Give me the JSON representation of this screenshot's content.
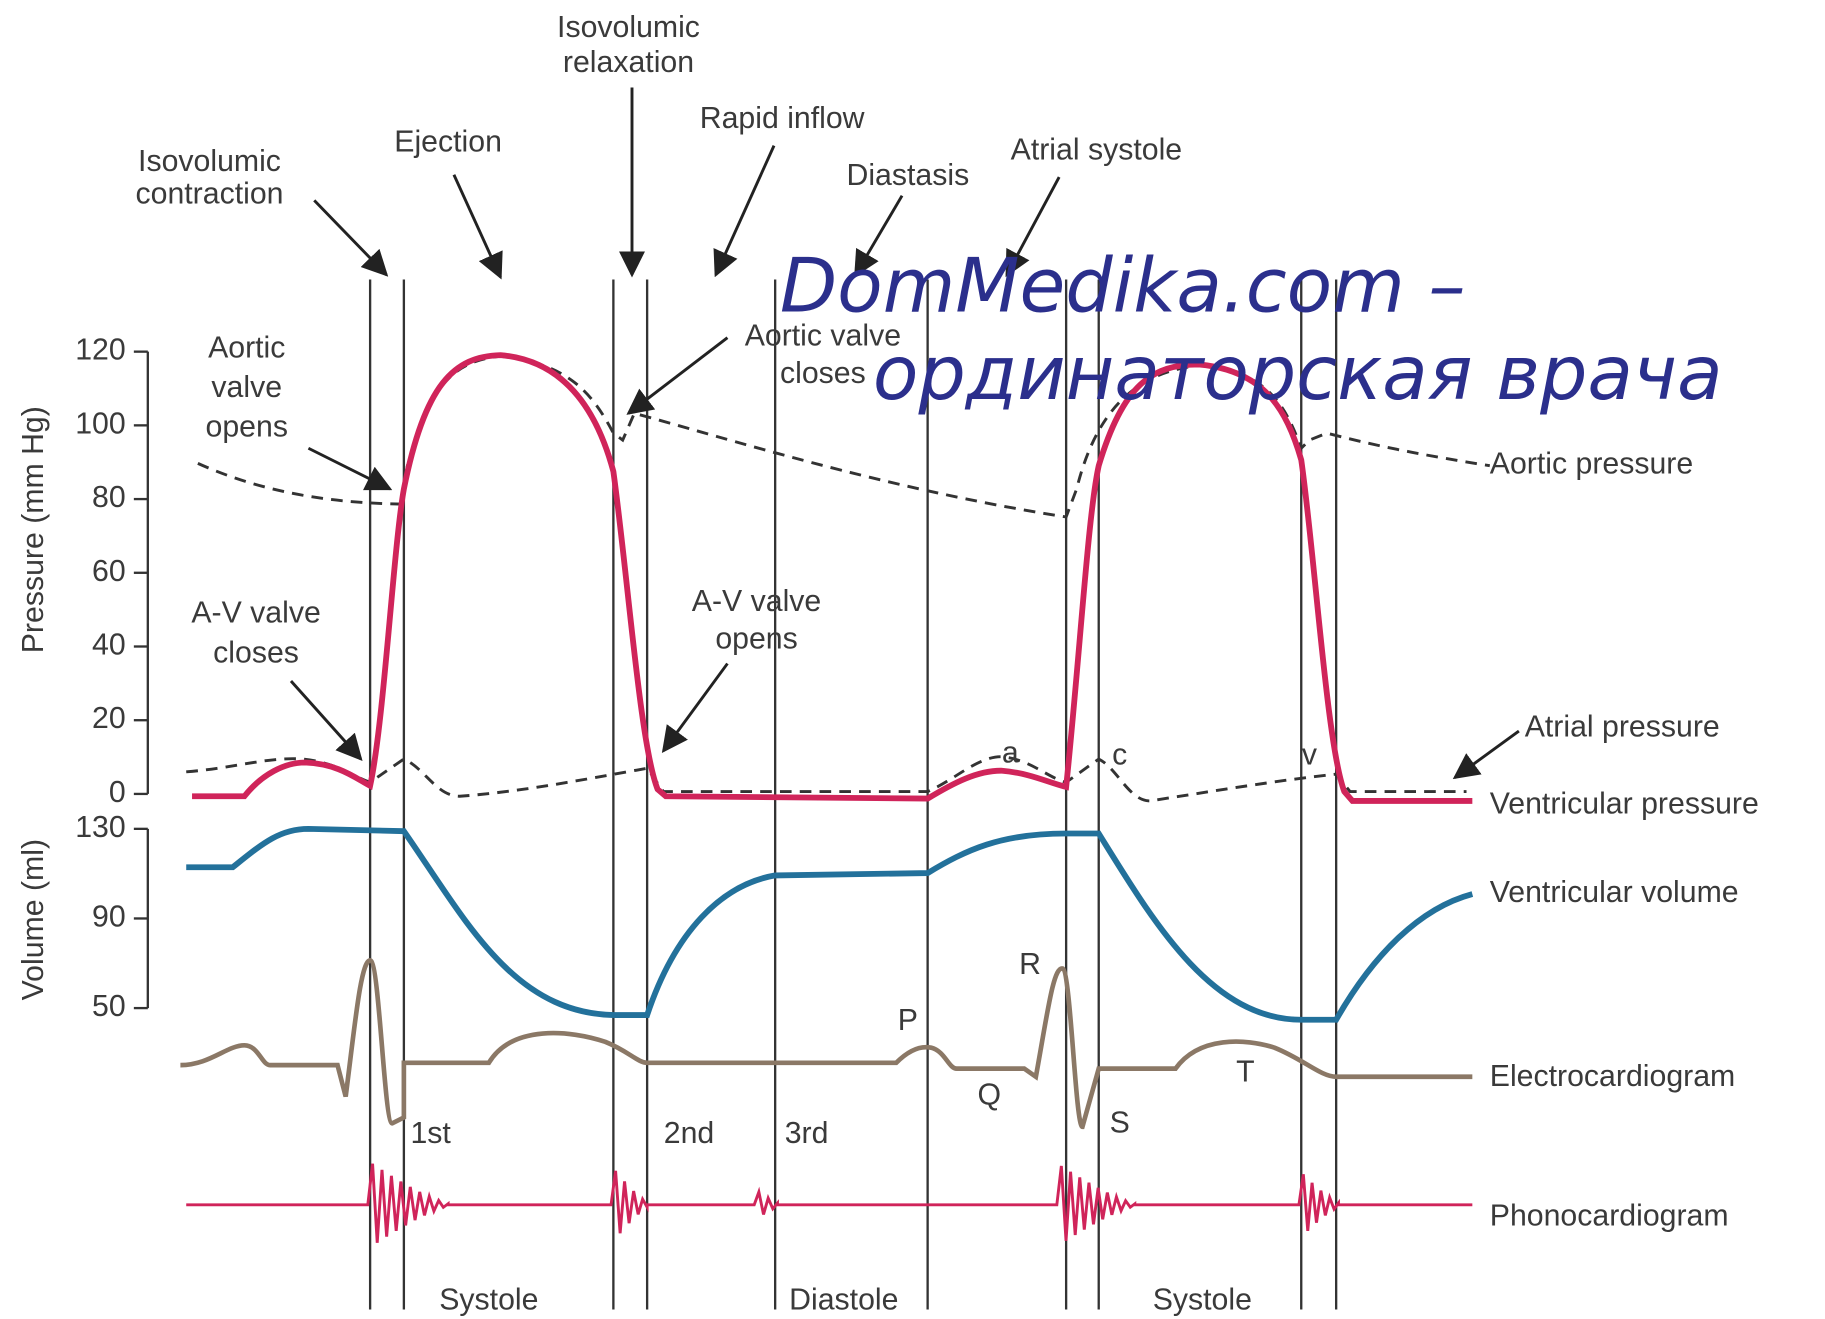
{
  "phase_labels": {
    "isovolumic_contraction": [
      "Isovolumic",
      "contraction"
    ],
    "ejection": [
      "Ejection"
    ],
    "isovolumic_relaxation": [
      "Isovolumic",
      "relaxation"
    ],
    "rapid_inflow": [
      "Rapid inflow"
    ],
    "diastasis": [
      "Diastasis"
    ],
    "atrial_systole": [
      "Atrial systole"
    ]
  },
  "event_labels": {
    "aortic_valve_opens": [
      "Aortic",
      "valve",
      "opens"
    ],
    "aortic_valve_closes": [
      "Aortic valve",
      "closes"
    ],
    "av_valve_closes": [
      "A-V valve",
      "closes"
    ],
    "av_valve_opens": [
      "A-V valve",
      "opens"
    ]
  },
  "pressure_axis": {
    "title": "Pressure (mm Hg)",
    "ticks": [
      0,
      20,
      40,
      60,
      80,
      100,
      120
    ]
  },
  "volume_axis": {
    "title": "Volume (ml)",
    "ticks": [
      50,
      90,
      130
    ]
  },
  "trace_labels": {
    "aortic_pressure": "Aortic pressure",
    "atrial_pressure": "Atrial pressure",
    "ventricular_pressure": "Ventricular pressure",
    "ventricular_volume": "Ventricular volume",
    "electrocardiogram": "Electrocardiogram",
    "phonocardiogram": "Phonocardiogram"
  },
  "wave_labels": {
    "a": "a",
    "c": "c",
    "v": "v",
    "R": "R",
    "P": "P",
    "Q": "Q",
    "S": "S",
    "T": "T"
  },
  "heart_sounds": [
    "1st",
    "2nd",
    "3rd"
  ],
  "periods": [
    "Systole",
    "Diastole",
    "Systole"
  ],
  "watermark": [
    "DomMedika.com –",
    "ординаторская врача"
  ]
}
